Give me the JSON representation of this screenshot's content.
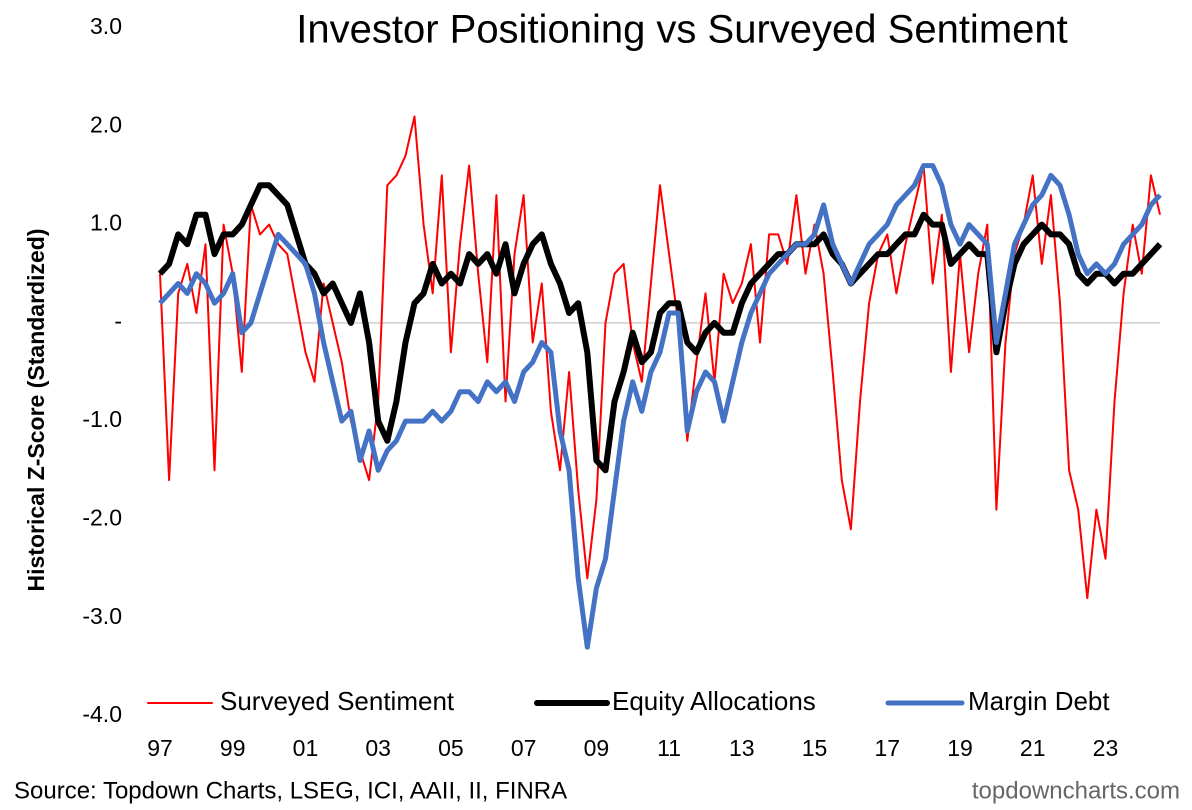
{
  "chart_data": {
    "type": "line",
    "title": "Investor Positioning vs Surveyed Sentiment",
    "ylabel": "Historical Z-Score (Standardized)",
    "source": "Source: Topdown Charts, LSEG, ICI, AAII, II, FINRA",
    "credit": "topdowncharts.com",
    "legend": "bottom",
    "x": [
      1997,
      1997.25,
      1997.5,
      1997.75,
      1998,
      1998.25,
      1998.5,
      1998.75,
      1999,
      1999.25,
      1999.5,
      1999.75,
      2000,
      2000.25,
      2000.5,
      2000.75,
      2001,
      2001.25,
      2001.5,
      2001.75,
      2002,
      2002.25,
      2002.5,
      2002.75,
      2003,
      2003.25,
      2003.5,
      2003.75,
      2004,
      2004.25,
      2004.5,
      2004.75,
      2005,
      2005.25,
      2005.5,
      2005.75,
      2006,
      2006.25,
      2006.5,
      2006.75,
      2007,
      2007.25,
      2007.5,
      2007.75,
      2008,
      2008.25,
      2008.5,
      2008.75,
      2009,
      2009.25,
      2009.5,
      2009.75,
      2010,
      2010.25,
      2010.5,
      2010.75,
      2011,
      2011.25,
      2011.5,
      2011.75,
      2012,
      2012.25,
      2012.5,
      2012.75,
      2013,
      2013.25,
      2013.5,
      2013.75,
      2014,
      2014.25,
      2014.5,
      2014.75,
      2015,
      2015.25,
      2015.5,
      2015.75,
      2016,
      2016.25,
      2016.5,
      2016.75,
      2017,
      2017.25,
      2017.5,
      2017.75,
      2018,
      2018.25,
      2018.5,
      2018.75,
      2019,
      2019.25,
      2019.5,
      2019.75,
      2020,
      2020.25,
      2020.5,
      2020.75,
      2021,
      2021.25,
      2021.5,
      2021.75,
      2022,
      2022.25,
      2022.5,
      2022.75,
      2023,
      2023.25,
      2023.5,
      2023.75,
      2024,
      2024.25,
      2024.5
    ],
    "series": [
      {
        "name": "Surveyed Sentiment",
        "color": "#ff0000",
        "width": 2,
        "values": [
          0.5,
          -1.6,
          0.3,
          0.6,
          0.1,
          0.8,
          -1.5,
          1.0,
          0.5,
          -0.5,
          1.2,
          0.9,
          1.0,
          0.8,
          0.7,
          0.2,
          -0.3,
          -0.6,
          0.4,
          0.0,
          -0.4,
          -1.0,
          -1.3,
          -1.6,
          -0.8,
          1.4,
          1.5,
          1.7,
          2.1,
          1.0,
          0.3,
          1.5,
          -0.3,
          0.8,
          1.6,
          0.5,
          -0.4,
          1.3,
          -0.8,
          0.7,
          1.3,
          -0.2,
          0.4,
          -0.9,
          -1.5,
          -0.5,
          -1.7,
          -2.6,
          -1.8,
          0.0,
          0.5,
          0.6,
          -0.2,
          -0.6,
          0.4,
          1.4,
          0.7,
          0.0,
          -1.2,
          -0.4,
          0.3,
          -0.6,
          0.5,
          0.2,
          0.4,
          0.8,
          -0.2,
          0.9,
          0.9,
          0.6,
          1.3,
          0.5,
          1.0,
          0.5,
          -0.5,
          -1.6,
          -2.1,
          -0.8,
          0.2,
          0.7,
          0.9,
          0.3,
          0.8,
          1.2,
          1.6,
          0.4,
          1.1,
          -0.5,
          0.7,
          -0.3,
          0.5,
          1.0,
          -1.9,
          -0.2,
          0.7,
          1.0,
          1.5,
          0.6,
          1.3,
          0.2,
          -1.5,
          -1.9,
          -2.8,
          -1.9,
          -2.4,
          -0.8,
          0.3,
          1.0,
          0.5,
          1.5,
          1.1
        ]
      },
      {
        "name": "Equity Allocations",
        "color": "#000000",
        "width": 6,
        "values": [
          0.5,
          0.6,
          0.9,
          0.8,
          1.1,
          1.1,
          0.7,
          0.9,
          0.9,
          1.0,
          1.2,
          1.4,
          1.4,
          1.3,
          1.2,
          0.9,
          0.6,
          0.5,
          0.3,
          0.4,
          0.2,
          0.0,
          0.3,
          -0.2,
          -1.0,
          -1.2,
          -0.8,
          -0.2,
          0.2,
          0.3,
          0.6,
          0.4,
          0.5,
          0.4,
          0.7,
          0.6,
          0.7,
          0.5,
          0.8,
          0.3,
          0.6,
          0.8,
          0.9,
          0.6,
          0.4,
          0.1,
          0.2,
          -0.3,
          -1.4,
          -1.5,
          -0.8,
          -0.5,
          -0.1,
          -0.4,
          -0.3,
          0.1,
          0.2,
          0.2,
          -0.2,
          -0.3,
          -0.1,
          0.0,
          -0.1,
          -0.1,
          0.2,
          0.4,
          0.5,
          0.6,
          0.7,
          0.7,
          0.8,
          0.8,
          0.8,
          0.9,
          0.7,
          0.6,
          0.4,
          0.5,
          0.6,
          0.7,
          0.7,
          0.8,
          0.9,
          0.9,
          1.1,
          1.0,
          1.0,
          0.6,
          0.7,
          0.8,
          0.7,
          0.7,
          -0.3,
          0.2,
          0.6,
          0.8,
          0.9,
          1.0,
          0.9,
          0.9,
          0.8,
          0.5,
          0.4,
          0.5,
          0.5,
          0.4,
          0.5,
          0.5,
          0.6,
          0.7,
          0.8
        ]
      },
      {
        "name": "Margin Debt",
        "color": "#4472c4",
        "width": 5,
        "values": [
          0.2,
          0.3,
          0.4,
          0.3,
          0.5,
          0.4,
          0.2,
          0.3,
          0.5,
          -0.1,
          0.0,
          0.3,
          0.6,
          0.9,
          0.8,
          0.7,
          0.6,
          0.3,
          -0.2,
          -0.6,
          -1.0,
          -0.9,
          -1.4,
          -1.1,
          -1.5,
          -1.3,
          -1.2,
          -1.0,
          -1.0,
          -1.0,
          -0.9,
          -1.0,
          -0.9,
          -0.7,
          -0.7,
          -0.8,
          -0.6,
          -0.7,
          -0.6,
          -0.8,
          -0.5,
          -0.4,
          -0.2,
          -0.3,
          -1.1,
          -1.5,
          -2.6,
          -3.3,
          -2.7,
          -2.4,
          -1.7,
          -1.0,
          -0.6,
          -0.9,
          -0.5,
          -0.3,
          0.1,
          0.1,
          -1.1,
          -0.7,
          -0.5,
          -0.6,
          -1.0,
          -0.6,
          -0.2,
          0.1,
          0.3,
          0.5,
          0.6,
          0.7,
          0.8,
          0.8,
          0.9,
          1.2,
          0.8,
          0.6,
          0.4,
          0.6,
          0.8,
          0.9,
          1.0,
          1.2,
          1.3,
          1.4,
          1.6,
          1.6,
          1.4,
          1.0,
          0.8,
          1.0,
          0.9,
          0.8,
          -0.2,
          0.3,
          0.8,
          1.0,
          1.2,
          1.3,
          1.5,
          1.4,
          1.1,
          0.7,
          0.5,
          0.6,
          0.5,
          0.6,
          0.8,
          0.9,
          1.0,
          1.2,
          1.3
        ]
      }
    ],
    "xlim": [
      1997,
      2024.5
    ],
    "xticks": [
      {
        "value": 1997,
        "label": "97"
      },
      {
        "value": 1999,
        "label": "99"
      },
      {
        "value": 2001,
        "label": "01"
      },
      {
        "value": 2003,
        "label": "03"
      },
      {
        "value": 2005,
        "label": "05"
      },
      {
        "value": 2007,
        "label": "07"
      },
      {
        "value": 2009,
        "label": "09"
      },
      {
        "value": 2011,
        "label": "11"
      },
      {
        "value": 2013,
        "label": "13"
      },
      {
        "value": 2015,
        "label": "15"
      },
      {
        "value": 2017,
        "label": "17"
      },
      {
        "value": 2019,
        "label": "19"
      },
      {
        "value": 2021,
        "label": "21"
      },
      {
        "value": 2023,
        "label": "23"
      }
    ],
    "ylim": [
      -4,
      3
    ],
    "yticks": [
      {
        "value": 3,
        "label": "3.0"
      },
      {
        "value": 2,
        "label": "2.0"
      },
      {
        "value": 1,
        "label": "1.0"
      },
      {
        "value": 0,
        "label": "-"
      },
      {
        "value": -1,
        "label": "-1.0"
      },
      {
        "value": -2,
        "label": "-2.0"
      },
      {
        "value": -3,
        "label": "-3.0"
      },
      {
        "value": -4,
        "label": "-4.0"
      }
    ],
    "zero_line": true
  }
}
